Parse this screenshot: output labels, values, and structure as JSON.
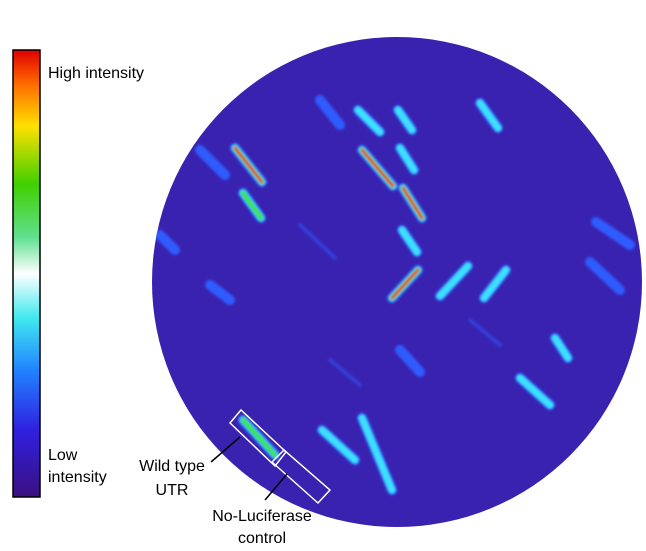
{
  "colorbar": {
    "high_label": "High intensity",
    "low_label": [
      "Low",
      "intensity"
    ]
  },
  "annotations": {
    "wild_type": [
      "Wild type",
      "UTR"
    ],
    "no_luciferase": [
      "No-Luciferase",
      "control"
    ]
  }
}
